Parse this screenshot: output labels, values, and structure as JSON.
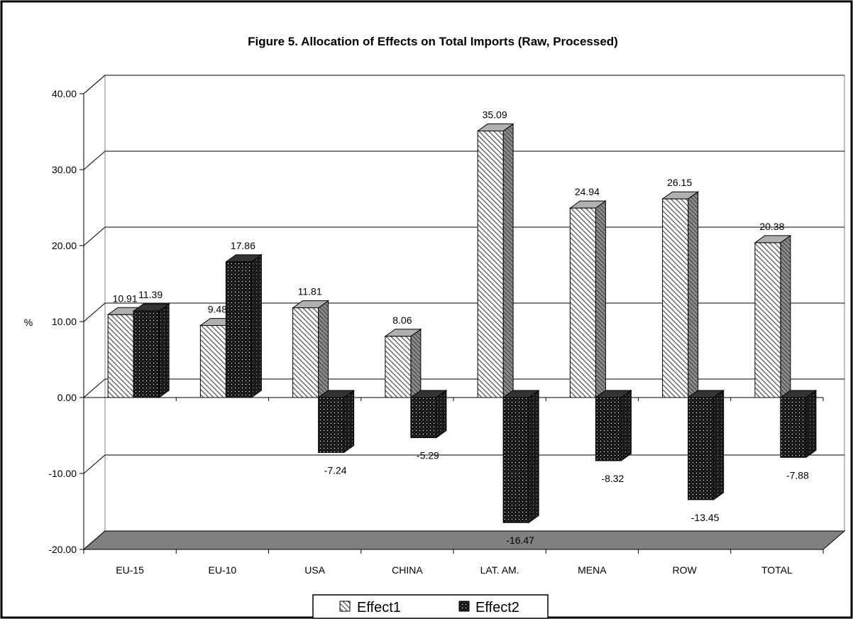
{
  "chart_data": {
    "type": "bar",
    "title": "Figure 5. Allocation of Effects on Total Imports (Raw, Processed)",
    "ylabel": "%",
    "xlabel": "",
    "categories": [
      "EU-15",
      "EU-10",
      "USA",
      "CHINA",
      "LAT. AM.",
      "MENA",
      "ROW",
      "TOTAL"
    ],
    "series": [
      {
        "name": "Effect1",
        "values": [
          10.91,
          9.48,
          11.81,
          8.06,
          35.09,
          24.94,
          26.15,
          20.38
        ]
      },
      {
        "name": "Effect2",
        "values": [
          11.39,
          17.86,
          -7.24,
          -5.29,
          -16.47,
          -8.32,
          -13.45,
          -7.88
        ]
      }
    ],
    "ylim": [
      -20,
      40
    ],
    "yticks": [
      "40.00",
      "30.00",
      "20.00",
      "10.00",
      "0.00",
      "-10.00",
      "-20.00"
    ],
    "data_labels": [
      [
        "10.91",
        "9.48",
        "11.81",
        "8.06",
        "35.09",
        "24.94",
        "26.15",
        "20.38"
      ],
      [
        "11.39",
        "17.86",
        "-7.24",
        "-5.29",
        "-16.47",
        "-8.32",
        "-13.45",
        "-7.88"
      ]
    ],
    "grid": true,
    "legend_position": "bottom",
    "style": "3d-clustered-column",
    "colors": {
      "effect1_face": "#ffffff",
      "effect1_hatch": "#555555",
      "effect1_side": "#888888",
      "effect2_face": "#111111",
      "effect2_dots": "#ffffff",
      "effect2_side": "#222222",
      "floor": "#808080",
      "border": "#000000"
    }
  }
}
